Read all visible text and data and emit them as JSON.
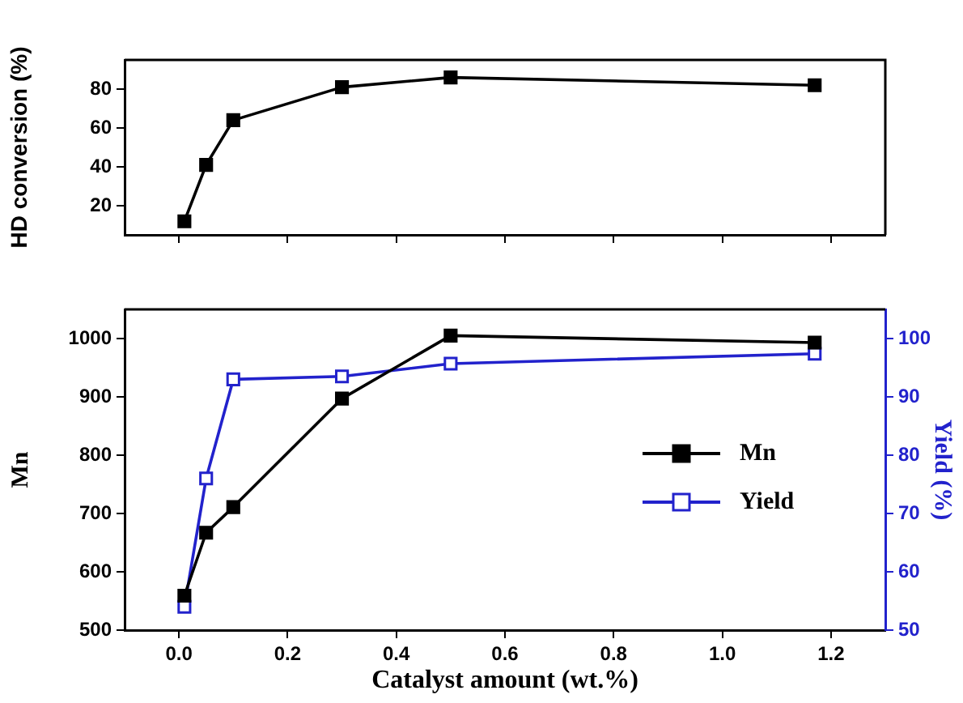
{
  "chart_data": [
    {
      "type": "line",
      "ylabel": "HD conversion (%)",
      "x": [
        0.01,
        0.05,
        0.1,
        0.3,
        0.5,
        1.17
      ],
      "series": [
        {
          "color": "#000000",
          "values": [
            12,
            41,
            64,
            81,
            86,
            82
          ]
        }
      ],
      "xlim": [
        -0.1,
        1.3
      ],
      "xticks": [
        {
          "value": 0,
          "label": null
        },
        {
          "value": 0.2,
          "label": null
        },
        {
          "value": 0.4,
          "label": null
        },
        {
          "value": 0.6,
          "label": null
        },
        {
          "value": 0.8,
          "label": null
        },
        {
          "value": 1,
          "label": null
        },
        {
          "value": 1.2,
          "label": null
        }
      ],
      "ylim": [
        5,
        95
      ],
      "yticks": [
        20,
        40,
        60,
        80
      ],
      "tick_labels": "y",
      "marker": "square",
      "grid": false,
      "legend": false
    },
    {
      "type": "line",
      "xlabel": "Catalyst amount (wt.%)",
      "ylabel": "Mn",
      "y2label": "Yield (%)",
      "x": [
        0.01,
        0.05,
        0.1,
        0.3,
        0.5,
        1.17
      ],
      "series": [
        {
          "name": "Mn",
          "color": "#000000",
          "values": [
            559,
            667,
            711,
            897,
            1005,
            993
          ]
        },
        {
          "name": "Yield",
          "color": "#2222cc",
          "axis": "y2",
          "values": [
            54,
            76,
            93,
            93.5,
            95.7,
            97.4
          ]
        }
      ],
      "xlim": [
        -0.1,
        1.3
      ],
      "xticks": [
        {
          "value": 0,
          "label": "0.0"
        },
        0.2,
        0.4,
        0.6,
        0.8,
        {
          "value": 1,
          "label": "1.0"
        },
        1.2
      ],
      "ylim": [
        500,
        1050
      ],
      "yticks": [
        500,
        600,
        700,
        800,
        900,
        1000
      ],
      "y2lim": [
        50,
        105
      ],
      "y2ticks": [
        50,
        60,
        70,
        80,
        90,
        100
      ],
      "marker": "square",
      "grid": false,
      "legend": "right"
    }
  ]
}
